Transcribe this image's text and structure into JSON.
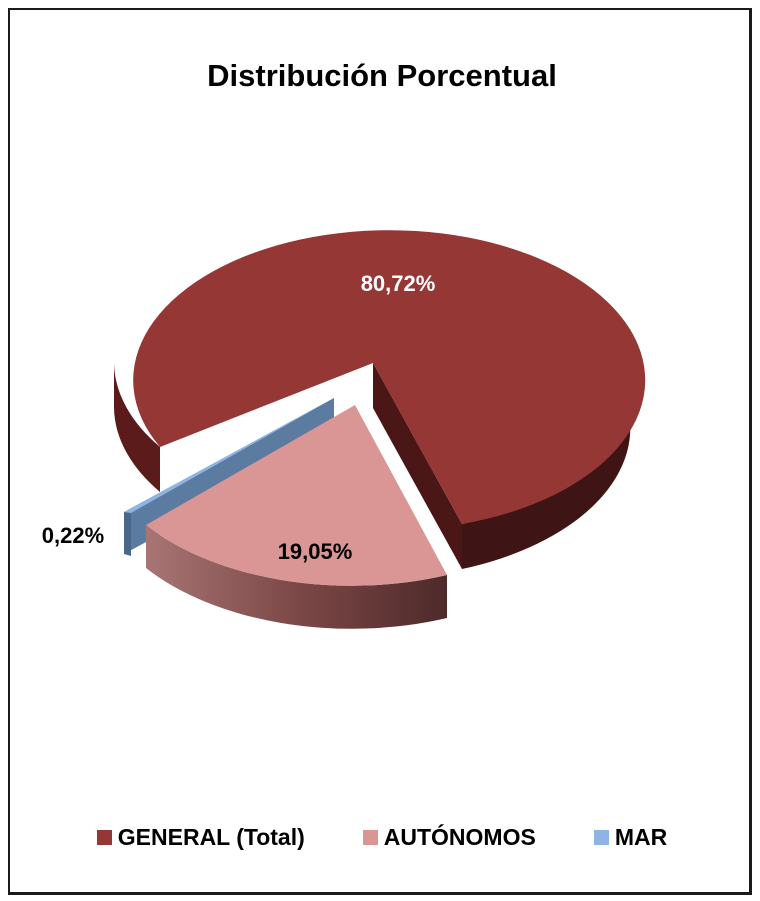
{
  "chart_data": {
    "type": "pie",
    "title": "Distribución Porcentual",
    "categories": [
      "GENERAL (Total)",
      "AUTÓNOMOS",
      "MAR"
    ],
    "values": [
      80.72,
      19.05,
      0.22
    ],
    "data_labels": [
      "80,72%",
      "19,05%",
      "0,22%"
    ],
    "colors": [
      "#953735",
      "#d99694",
      "#8eb4e3"
    ],
    "legend_position": "bottom",
    "style": "3d-exploded"
  }
}
